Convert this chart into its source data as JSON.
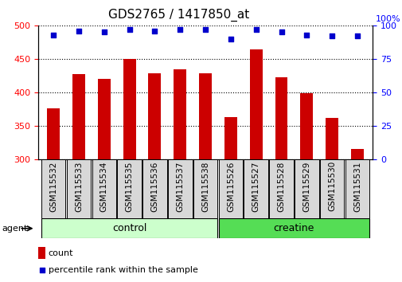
{
  "title": "GDS2765 / 1417850_at",
  "categories": [
    "GSM115532",
    "GSM115533",
    "GSM115534",
    "GSM115535",
    "GSM115536",
    "GSM115537",
    "GSM115538",
    "GSM115526",
    "GSM115527",
    "GSM115528",
    "GSM115529",
    "GSM115530",
    "GSM115531"
  ],
  "bar_values": [
    376,
    427,
    420,
    450,
    429,
    434,
    429,
    363,
    464,
    422,
    399,
    362,
    315
  ],
  "percentile_values": [
    93,
    96,
    95,
    97,
    96,
    97,
    97,
    90,
    97,
    95,
    93,
    92,
    92
  ],
  "bar_color": "#cc0000",
  "dot_color": "#0000cc",
  "ylim_left": [
    300,
    500
  ],
  "ylim_right": [
    0,
    100
  ],
  "yticks_left": [
    300,
    350,
    400,
    450,
    500
  ],
  "yticks_right": [
    0,
    25,
    50,
    75,
    100
  ],
  "group_labels": [
    "control",
    "creatine"
  ],
  "group_control_count": 7,
  "group_creatine_count": 6,
  "group_control_color": "#ccffcc",
  "group_creatine_color": "#55dd55",
  "legend_count_label": "count",
  "legend_pct_label": "percentile rank within the sample",
  "agent_label": "agent",
  "bar_width": 0.5,
  "title_fontsize": 11,
  "label_fontsize": 7.5,
  "group_fontsize": 9,
  "legend_fontsize": 8
}
